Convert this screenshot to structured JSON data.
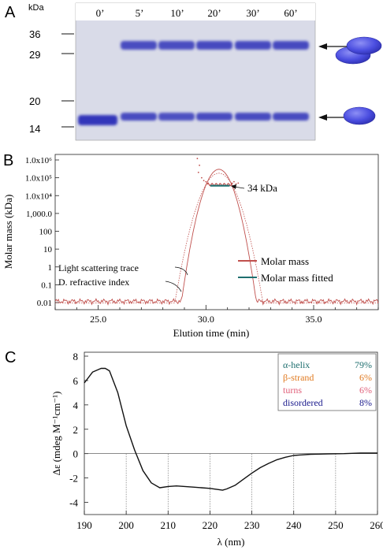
{
  "figure": {
    "panels": [
      {
        "letter": "A",
        "kda_label": "kDa",
        "lane_labels": [
          "0’",
          "5’",
          "10’",
          "20’",
          "30’",
          "60’"
        ],
        "marker_labels": [
          "36",
          "29",
          "20",
          "14"
        ],
        "dimer_band_intensity": [
          0.0,
          0.85,
          0.85,
          0.9,
          0.9,
          0.9
        ],
        "monomer_band_intensity": [
          1.0,
          0.8,
          0.75,
          0.8,
          0.8,
          0.8
        ],
        "legend_icons": [
          "dimer-icon",
          "monomer-icon"
        ],
        "colors": {
          "band": "#2a2fb8",
          "gel": "#d7dae8",
          "oval": "#4b4ee0"
        }
      }
    ]
  },
  "chart_data": [
    {
      "panel": "B",
      "type": "line",
      "xlabel": "Elution time (min)",
      "ylabel": "Molar mass (kDa)",
      "xlim": [
        23,
        38
      ],
      "x_ticks": [
        "25.0",
        "30.0",
        "35.0"
      ],
      "y_scale": "log",
      "y_ticks": [
        "0.01",
        "0.1",
        "1",
        "10",
        "100",
        "1,000.0",
        "1.0x10⁴",
        "1.0x10⁵",
        "1.0x10⁶"
      ],
      "annotations": [
        "34 kDa",
        "Light scattering trace",
        "D. refractive index"
      ],
      "legend": [
        "Molar mass",
        "Molar mass fitted"
      ],
      "legend_position": "right",
      "grid": false,
      "colors": {
        "molar_mass": "#c0504d",
        "fitted": "#1f6f6f"
      },
      "series": [
        {
          "name": "Molar mass",
          "peak_center": 30.6,
          "peak_value": 300000,
          "baseline": 0.012
        },
        {
          "name": "Molar mass fitted",
          "x_range": [
            30.2,
            31.1
          ],
          "value": 34
        }
      ]
    },
    {
      "panel": "C",
      "type": "line",
      "xlabel": "λ (nm)",
      "ylabel": "Δε (mdeg M⁻¹cm⁻¹)",
      "xlim": [
        190,
        260
      ],
      "ylim": [
        -5,
        8
      ],
      "x_ticks": [
        190,
        200,
        210,
        220,
        230,
        240,
        250,
        260
      ],
      "y_ticks": [
        -4,
        -2,
        0,
        2,
        4,
        6,
        8
      ],
      "grid": "vertical-dotted",
      "x": [
        190,
        192,
        194,
        195,
        196,
        198,
        200,
        202,
        204,
        206,
        208,
        210,
        212,
        214,
        216,
        218,
        220,
        222,
        223,
        224,
        226,
        228,
        230,
        232,
        234,
        236,
        238,
        240,
        244,
        248,
        252,
        256,
        260
      ],
      "y": [
        5.8,
        6.7,
        7.0,
        7.0,
        6.8,
        5.0,
        2.3,
        0.3,
        -1.4,
        -2.4,
        -2.8,
        -2.7,
        -2.65,
        -2.7,
        -2.75,
        -2.8,
        -2.85,
        -2.95,
        -3.0,
        -2.9,
        -2.6,
        -2.1,
        -1.6,
        -1.15,
        -0.8,
        -0.5,
        -0.3,
        -0.15,
        -0.05,
        -0.02,
        0.0,
        0.05,
        0.05
      ],
      "legend_table": {
        "rows": [
          {
            "label": "α-helix",
            "value": "79%",
            "color": "#1f6f6f"
          },
          {
            "label": "β-strand",
            "value": "6%",
            "color": "#e07a20"
          },
          {
            "label": "turns",
            "value": "6%",
            "color": "#e0607a"
          },
          {
            "label": "disordered",
            "value": "8%",
            "color": "#1a1a8c"
          }
        ],
        "position": "top-right"
      }
    }
  ]
}
